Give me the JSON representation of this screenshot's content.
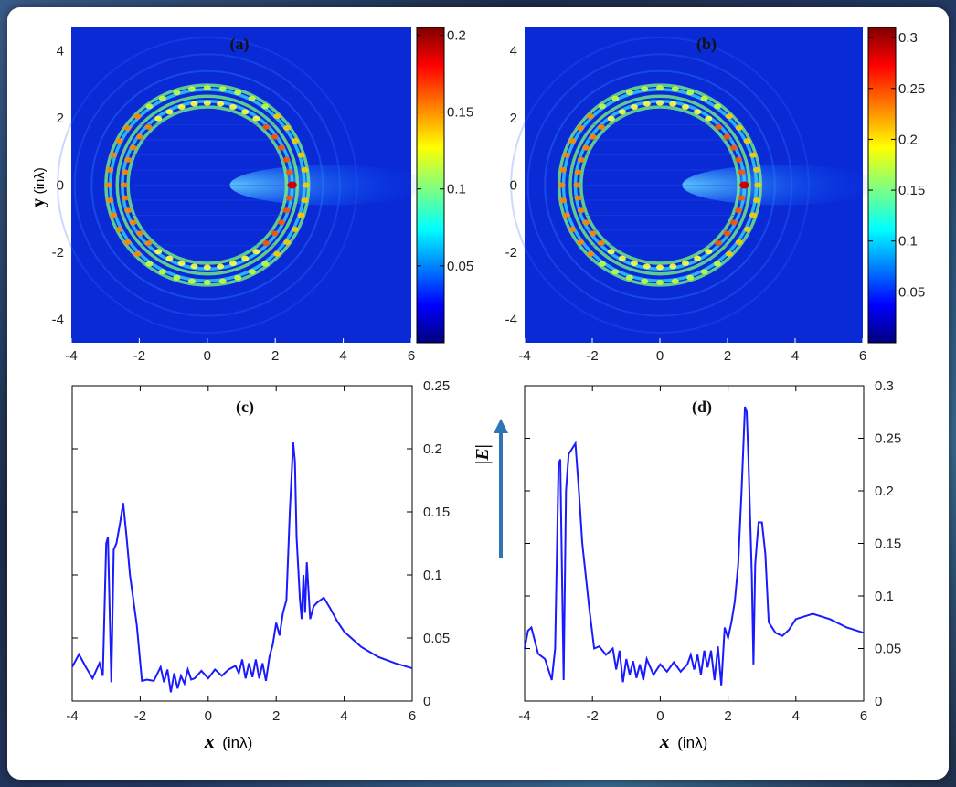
{
  "colors": {
    "line": "#1a1aff",
    "arrow": "#2e75b6",
    "frame": "#000000"
  },
  "labels": {
    "a": "(a)",
    "b": "(b)",
    "c": "(c)",
    "d": "(d)",
    "ylabel_var": "y",
    "ylabel_unit": "(inλ)",
    "xlabel_var": "x",
    "xlabel_unit": "(inλ)",
    "e_label": "|E|"
  },
  "chart_data": [
    {
      "type": "heatmap",
      "panel": "(a)",
      "xlim": [
        -4,
        6
      ],
      "ylim": [
        -4.7,
        4.7
      ],
      "xticks": [
        "-4",
        "-2",
        "0",
        "2",
        "4",
        "6"
      ],
      "yticks": [
        "4",
        "2",
        "0",
        "-2",
        "-4"
      ],
      "ylabel": "y (inλ)",
      "colorbar": {
        "min": 0,
        "max": 0.205,
        "ticks": [
          "0.2",
          "0.15",
          "0.1",
          "0.05"
        ]
      },
      "colormap": "jet",
      "ring": {
        "center": [
          0,
          0
        ],
        "inner_radius": 2.45,
        "outer_radius": 2.9
      },
      "hotspot": {
        "x": 2.5,
        "y": 0,
        "value": 0.2
      }
    },
    {
      "type": "heatmap",
      "panel": "(b)",
      "xlim": [
        -4,
        6
      ],
      "ylim": [
        -4.7,
        4.7
      ],
      "xticks": [
        "-4",
        "-2",
        "0",
        "2",
        "4",
        "6"
      ],
      "yticks": [
        "4",
        "2",
        "0",
        "-2",
        "-4"
      ],
      "colorbar": {
        "min": 0,
        "max": 0.31,
        "ticks": [
          "0.3",
          "0.25",
          "0.2",
          "0.15",
          "0.1",
          "0.05"
        ]
      },
      "colormap": "jet",
      "ring": {
        "center": [
          0,
          0
        ],
        "inner_radius": 2.45,
        "outer_radius": 2.9
      },
      "hotspot": {
        "x": 2.5,
        "y": 0,
        "value": 0.28
      }
    },
    {
      "type": "line",
      "panel": "(c)",
      "xlim": [
        -4,
        6
      ],
      "ylim": [
        0,
        0.25
      ],
      "xticks": [
        "-4",
        "-2",
        "0",
        "2",
        "4",
        "6"
      ],
      "yticks": [
        "0",
        "0.05",
        "0.1",
        "0.15",
        "0.2",
        "0.25"
      ],
      "xlabel": "x (inλ)",
      "ylabel": "|E|",
      "x": [
        -4,
        -3.8,
        -3.6,
        -3.4,
        -3.2,
        -3.1,
        -3.0,
        -2.95,
        -2.85,
        -2.78,
        -2.7,
        -2.6,
        -2.5,
        -2.4,
        -2.3,
        -2.1,
        -1.95,
        -1.8,
        -1.6,
        -1.4,
        -1.3,
        -1.2,
        -1.1,
        -1.0,
        -0.9,
        -0.8,
        -0.7,
        -0.6,
        -0.5,
        -0.4,
        -0.2,
        0,
        0.2,
        0.4,
        0.6,
        0.8,
        0.9,
        1.0,
        1.1,
        1.2,
        1.3,
        1.4,
        1.5,
        1.6,
        1.7,
        1.8,
        1.9,
        2.0,
        2.1,
        2.2,
        2.3,
        2.4,
        2.5,
        2.55,
        2.6,
        2.7,
        2.75,
        2.8,
        2.85,
        2.9,
        3.0,
        3.1,
        3.2,
        3.4,
        3.6,
        3.8,
        4.0,
        4.5,
        5.0,
        5.5,
        6.0
      ],
      "y": [
        0.027,
        0.037,
        0.027,
        0.018,
        0.03,
        0.02,
        0.125,
        0.13,
        0.015,
        0.12,
        0.125,
        0.14,
        0.157,
        0.13,
        0.1,
        0.06,
        0.016,
        0.017,
        0.016,
        0.027,
        0.015,
        0.025,
        0.007,
        0.022,
        0.01,
        0.02,
        0.014,
        0.025,
        0.017,
        0.018,
        0.024,
        0.018,
        0.025,
        0.02,
        0.025,
        0.028,
        0.022,
        0.033,
        0.018,
        0.03,
        0.019,
        0.033,
        0.018,
        0.03,
        0.016,
        0.035,
        0.045,
        0.062,
        0.052,
        0.07,
        0.08,
        0.15,
        0.205,
        0.19,
        0.13,
        0.08,
        0.065,
        0.1,
        0.07,
        0.11,
        0.065,
        0.075,
        0.078,
        0.082,
        0.073,
        0.063,
        0.055,
        0.043,
        0.035,
        0.03,
        0.026
      ]
    },
    {
      "type": "line",
      "panel": "(d)",
      "xlim": [
        -4,
        6
      ],
      "ylim": [
        0,
        0.3
      ],
      "xticks": [
        "-4",
        "-2",
        "0",
        "2",
        "4",
        "6"
      ],
      "yticks": [
        "0",
        "0.05",
        "0.1",
        "0.15",
        "0.2",
        "0.25",
        "0.3"
      ],
      "xlabel": "x (inλ)",
      "x": [
        -4,
        -3.9,
        -3.8,
        -3.6,
        -3.4,
        -3.2,
        -3.1,
        -3.0,
        -2.95,
        -2.85,
        -2.78,
        -2.7,
        -2.6,
        -2.5,
        -2.4,
        -2.3,
        -2.1,
        -1.95,
        -1.8,
        -1.6,
        -1.4,
        -1.3,
        -1.2,
        -1.1,
        -1.0,
        -0.9,
        -0.8,
        -0.7,
        -0.6,
        -0.5,
        -0.4,
        -0.2,
        0,
        0.2,
        0.4,
        0.6,
        0.8,
        0.9,
        1.0,
        1.1,
        1.2,
        1.3,
        1.4,
        1.5,
        1.6,
        1.7,
        1.8,
        1.9,
        2.0,
        2.1,
        2.2,
        2.3,
        2.4,
        2.5,
        2.55,
        2.6,
        2.7,
        2.75,
        2.8,
        2.85,
        2.9,
        3.0,
        3.1,
        3.2,
        3.4,
        3.6,
        3.8,
        4.0,
        4.5,
        5.0,
        5.5,
        6.0
      ],
      "y": [
        0.05,
        0.067,
        0.07,
        0.045,
        0.04,
        0.02,
        0.05,
        0.225,
        0.23,
        0.02,
        0.2,
        0.235,
        0.24,
        0.245,
        0.2,
        0.15,
        0.09,
        0.05,
        0.052,
        0.044,
        0.05,
        0.03,
        0.048,
        0.018,
        0.04,
        0.025,
        0.038,
        0.022,
        0.035,
        0.02,
        0.04,
        0.025,
        0.035,
        0.028,
        0.037,
        0.028,
        0.035,
        0.044,
        0.03,
        0.044,
        0.025,
        0.048,
        0.032,
        0.048,
        0.02,
        0.052,
        0.015,
        0.07,
        0.06,
        0.075,
        0.095,
        0.13,
        0.2,
        0.28,
        0.275,
        0.23,
        0.12,
        0.035,
        0.13,
        0.15,
        0.17,
        0.17,
        0.14,
        0.075,
        0.065,
        0.062,
        0.068,
        0.078,
        0.083,
        0.078,
        0.07,
        0.065
      ]
    }
  ]
}
